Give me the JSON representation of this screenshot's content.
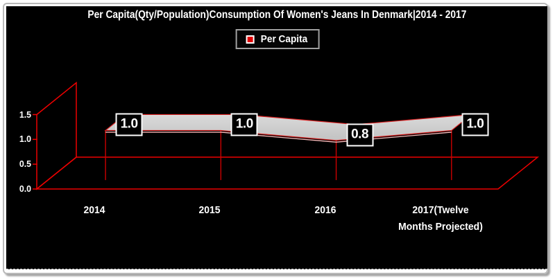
{
  "figure": {
    "frame_border_color": "#b9b9b9",
    "panel_background": "#000000"
  },
  "chart_data": {
    "type": "area",
    "variant": "3d-area",
    "title": "Per Capita(Qty/Population)Consumption Of Women's Jeans In Denmark|2014 - 2017",
    "categories": [
      "2014",
      "2015",
      "2016",
      "2017(Twelve\nMonths Projected)"
    ],
    "series": [
      {
        "name": "Per Capita",
        "values": [
          1.0,
          1.0,
          0.8,
          1.0
        ]
      }
    ],
    "data_labels": [
      "1.0",
      "1.0",
      "0.8",
      "1.0"
    ],
    "yticks": [
      0.0,
      0.5,
      1.0,
      1.5
    ],
    "ytick_labels": [
      "0.0",
      "0.5",
      "1.0",
      "1.5"
    ],
    "ylim": [
      0,
      1.5
    ],
    "xlabel": "",
    "ylabel": "",
    "grid": false,
    "legend_position": "top-center",
    "colors": {
      "axis": "#ee0000",
      "drop_line": "#cc0000",
      "ribbon_fill_light": "#dadada",
      "ribbon_fill_dark": "#c2c2c2",
      "ribbon_stroke": "#dd2222",
      "ribbon_highlight": "#ffbdbd",
      "label_box_background": "#000000",
      "label_box_border": "#ffffff",
      "text": "#ffffff",
      "legend_marker": "#e00000",
      "background": "#000000"
    }
  }
}
